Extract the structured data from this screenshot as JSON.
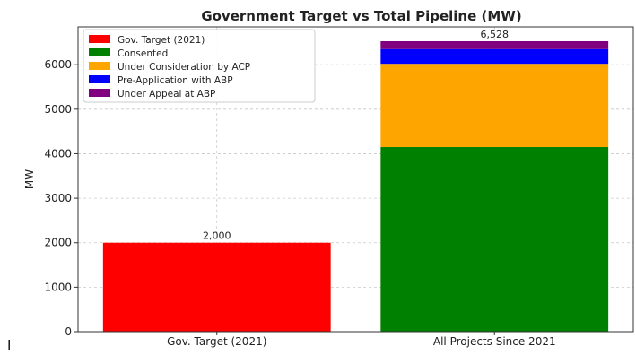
{
  "chart_data": {
    "type": "bar",
    "stacked": true,
    "title": "Government Target vs Total Pipeline (MW)",
    "xlabel": "",
    "ylabel": "MW",
    "ylim": [
      0,
      6850
    ],
    "yticks": [
      0,
      1000,
      2000,
      3000,
      4000,
      5000,
      6000
    ],
    "grid": true,
    "legend_position": "top-left",
    "categories": [
      "Gov. Target (2021)",
      "All Projects Since 2021"
    ],
    "series": [
      {
        "name": "Gov. Target (2021)",
        "color": "#ff0000",
        "values": [
          2000,
          0
        ]
      },
      {
        "name": "Consented",
        "color": "#008000",
        "values": [
          0,
          4150
        ]
      },
      {
        "name": "Under Consideration by ACP",
        "color": "#ffa500",
        "values": [
          0,
          1870
        ]
      },
      {
        "name": "Pre-Application with ABP",
        "color": "#0000ff",
        "values": [
          0,
          330
        ]
      },
      {
        "name": "Under Appeal at ABP",
        "color": "#800080",
        "values": [
          0,
          178
        ]
      }
    ],
    "totals": [
      2000,
      6528
    ],
    "total_labels": [
      "2,000",
      "6,528"
    ]
  },
  "stray_text": "I"
}
